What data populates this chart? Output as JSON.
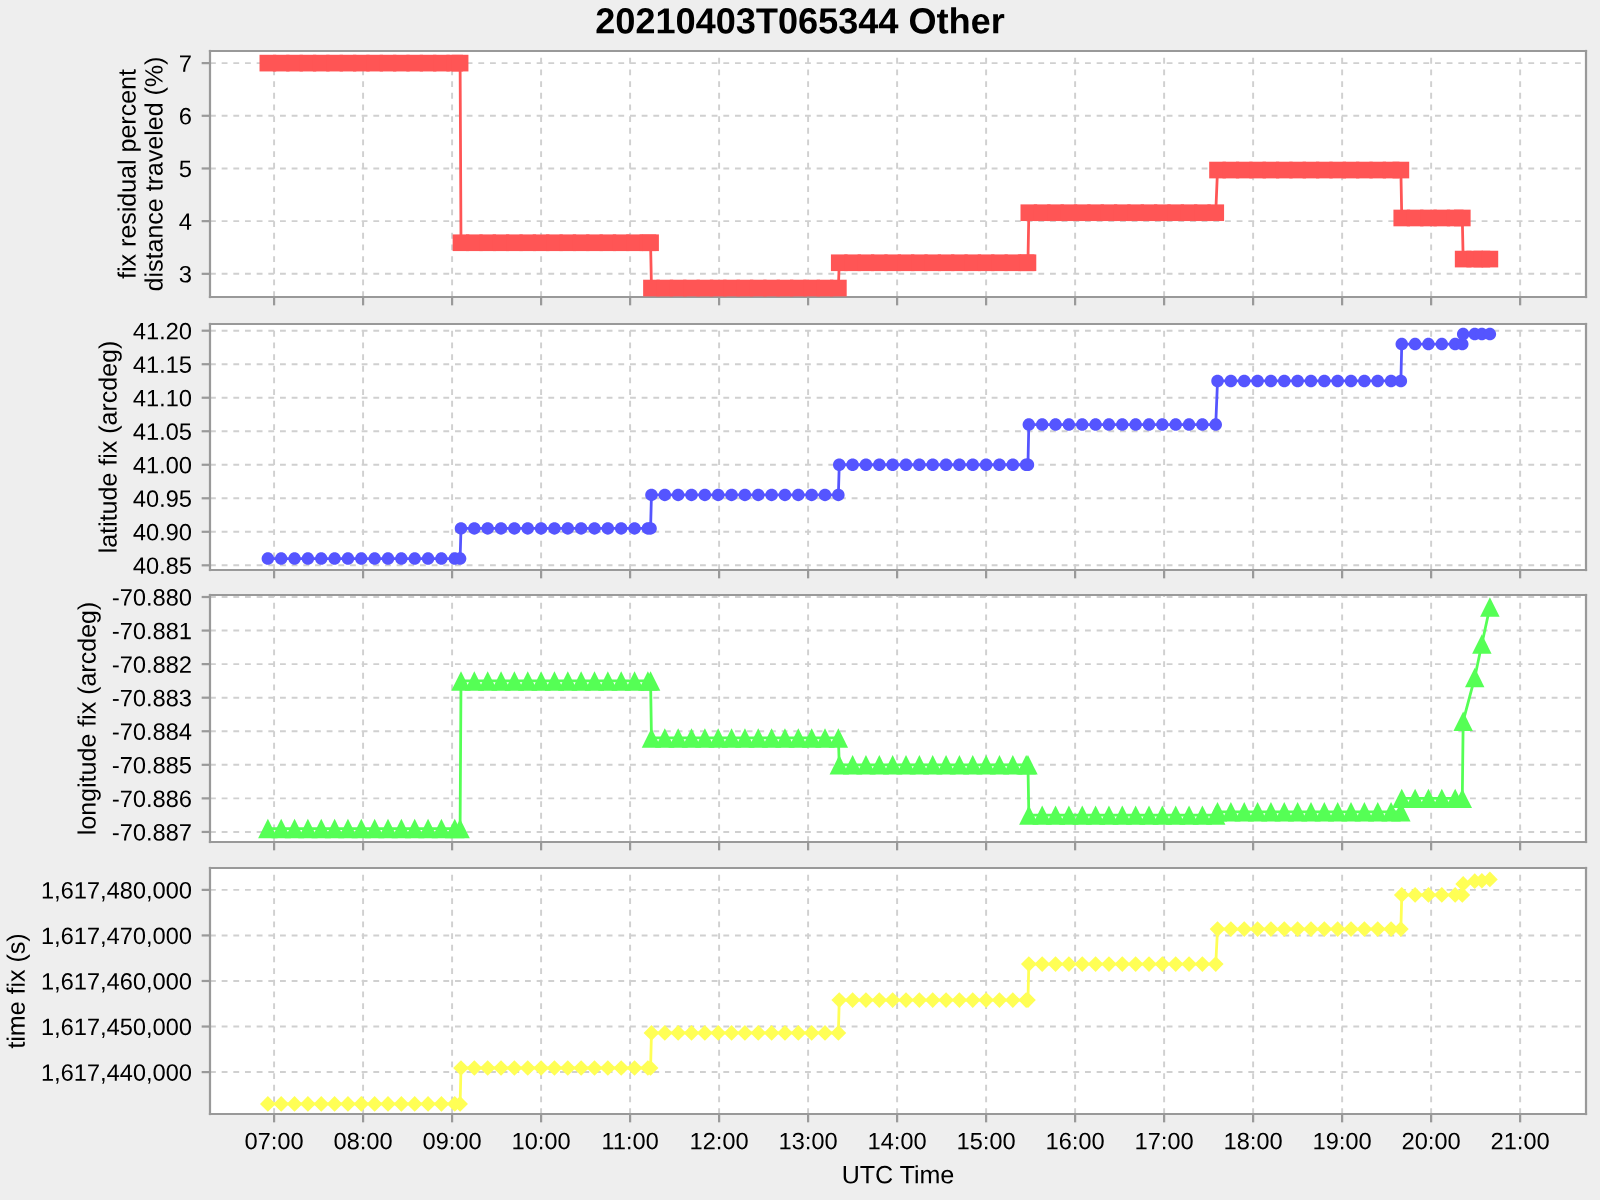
{
  "chart_data": [
    {
      "type": "line",
      "title": "20210403T065344 Other",
      "ylabel": "fix residual percent distance traveled (%)",
      "marker": "square",
      "grid": true,
      "tick_labels": "y",
      "x": [
        6.93,
        7.08,
        7.23,
        7.38,
        7.53,
        7.68,
        7.83,
        7.98,
        8.13,
        8.28,
        8.43,
        8.58,
        8.73,
        8.88,
        9.03,
        9.09,
        9.1,
        9.25,
        9.4,
        9.55,
        9.7,
        9.85,
        10.0,
        10.15,
        10.3,
        10.45,
        10.6,
        10.75,
        10.9,
        11.05,
        11.2,
        11.23,
        11.24,
        11.39,
        11.54,
        11.69,
        11.84,
        11.99,
        12.14,
        12.29,
        12.44,
        12.59,
        12.74,
        12.89,
        13.04,
        13.19,
        13.34,
        13.35,
        13.5,
        13.65,
        13.8,
        13.95,
        14.1,
        14.25,
        14.4,
        14.55,
        14.7,
        14.85,
        15.0,
        15.15,
        15.3,
        15.45,
        15.47,
        15.48,
        15.63,
        15.78,
        15.93,
        16.08,
        16.23,
        16.38,
        16.53,
        16.68,
        16.83,
        16.98,
        17.13,
        17.28,
        17.43,
        17.58,
        17.6,
        17.75,
        17.9,
        18.05,
        18.2,
        18.35,
        18.5,
        18.65,
        18.8,
        18.95,
        19.1,
        19.25,
        19.4,
        19.55,
        19.66,
        19.67,
        19.82,
        19.97,
        20.12,
        20.27,
        20.35,
        20.36,
        20.49,
        20.57,
        20.66
      ],
      "series": [
        {
          "color": "#ff5555",
          "values": [
            7.0,
            7.0,
            7.0,
            7.0,
            7.0,
            7.0,
            7.0,
            7.0,
            7.0,
            7.0,
            7.0,
            7.0,
            7.0,
            7.0,
            7.0,
            7.0,
            3.59,
            3.59,
            3.59,
            3.59,
            3.59,
            3.59,
            3.59,
            3.59,
            3.59,
            3.59,
            3.59,
            3.59,
            3.59,
            3.59,
            3.59,
            3.59,
            2.73,
            2.73,
            2.73,
            2.73,
            2.73,
            2.73,
            2.73,
            2.73,
            2.73,
            2.73,
            2.73,
            2.73,
            2.73,
            2.73,
            2.73,
            3.21,
            3.21,
            3.21,
            3.21,
            3.21,
            3.21,
            3.21,
            3.21,
            3.21,
            3.21,
            3.21,
            3.21,
            3.21,
            3.21,
            3.21,
            3.21,
            4.16,
            4.16,
            4.16,
            4.16,
            4.16,
            4.16,
            4.16,
            4.16,
            4.16,
            4.16,
            4.16,
            4.16,
            4.16,
            4.16,
            4.16,
            4.97,
            4.97,
            4.97,
            4.97,
            4.97,
            4.97,
            4.97,
            4.97,
            4.97,
            4.97,
            4.97,
            4.97,
            4.97,
            4.97,
            4.97,
            4.06,
            4.06,
            4.06,
            4.06,
            4.06,
            4.06,
            3.28,
            3.28,
            3.28,
            3.28
          ]
        }
      ],
      "xlim": [
        6.28,
        21.74
      ],
      "xticks": [
        {
          "value": 7,
          "label": null
        },
        {
          "value": 8,
          "label": null
        },
        {
          "value": 9,
          "label": null
        },
        {
          "value": 10,
          "label": null
        },
        {
          "value": 11,
          "label": null
        },
        {
          "value": 12,
          "label": null
        },
        {
          "value": 13,
          "label": null
        },
        {
          "value": 14,
          "label": null
        },
        {
          "value": 15,
          "label": null
        },
        {
          "value": 16,
          "label": null
        },
        {
          "value": 17,
          "label": null
        },
        {
          "value": 18,
          "label": null
        },
        {
          "value": 19,
          "label": null
        },
        {
          "value": 20,
          "label": null
        },
        {
          "value": 21,
          "label": null
        }
      ],
      "ylim": [
        2.56,
        7.23
      ],
      "yticks": [
        3,
        4,
        5,
        6,
        7
      ]
    },
    {
      "type": "line",
      "ylabel": "latitude fix (arcdeg)",
      "marker": "circle",
      "grid": true,
      "tick_labels": "y",
      "x": [
        6.93,
        7.08,
        7.23,
        7.38,
        7.53,
        7.68,
        7.83,
        7.98,
        8.13,
        8.28,
        8.43,
        8.58,
        8.73,
        8.88,
        9.03,
        9.09,
        9.1,
        9.25,
        9.4,
        9.55,
        9.7,
        9.85,
        10.0,
        10.15,
        10.3,
        10.45,
        10.6,
        10.75,
        10.9,
        11.05,
        11.2,
        11.23,
        11.24,
        11.39,
        11.54,
        11.69,
        11.84,
        11.99,
        12.14,
        12.29,
        12.44,
        12.59,
        12.74,
        12.89,
        13.04,
        13.19,
        13.34,
        13.35,
        13.5,
        13.65,
        13.8,
        13.95,
        14.1,
        14.25,
        14.4,
        14.55,
        14.7,
        14.85,
        15.0,
        15.15,
        15.3,
        15.45,
        15.47,
        15.48,
        15.63,
        15.78,
        15.93,
        16.08,
        16.23,
        16.38,
        16.53,
        16.68,
        16.83,
        16.98,
        17.13,
        17.28,
        17.43,
        17.58,
        17.6,
        17.75,
        17.9,
        18.05,
        18.2,
        18.35,
        18.5,
        18.65,
        18.8,
        18.95,
        19.1,
        19.25,
        19.4,
        19.55,
        19.66,
        19.67,
        19.82,
        19.97,
        20.12,
        20.27,
        20.35,
        20.36,
        20.49,
        20.57,
        20.66
      ],
      "series": [
        {
          "color": "#5555ff",
          "values": [
            40.86,
            40.86,
            40.86,
            40.86,
            40.86,
            40.86,
            40.86,
            40.86,
            40.86,
            40.86,
            40.86,
            40.86,
            40.86,
            40.86,
            40.86,
            40.86,
            40.905,
            40.905,
            40.905,
            40.905,
            40.905,
            40.905,
            40.905,
            40.905,
            40.905,
            40.905,
            40.905,
            40.905,
            40.905,
            40.905,
            40.905,
            40.905,
            40.955,
            40.955,
            40.955,
            40.955,
            40.955,
            40.955,
            40.955,
            40.955,
            40.955,
            40.955,
            40.955,
            40.955,
            40.955,
            40.955,
            40.955,
            41.0,
            41.0,
            41.0,
            41.0,
            41.0,
            41.0,
            41.0,
            41.0,
            41.0,
            41.0,
            41.0,
            41.0,
            41.0,
            41.0,
            41.0,
            41.0,
            41.06,
            41.06,
            41.06,
            41.06,
            41.06,
            41.06,
            41.06,
            41.06,
            41.06,
            41.06,
            41.06,
            41.06,
            41.06,
            41.06,
            41.06,
            41.125,
            41.125,
            41.125,
            41.125,
            41.125,
            41.125,
            41.125,
            41.125,
            41.125,
            41.125,
            41.125,
            41.125,
            41.125,
            41.125,
            41.125,
            41.18,
            41.18,
            41.18,
            41.18,
            41.18,
            41.18,
            41.195,
            41.195,
            41.195,
            41.195
          ]
        }
      ],
      "xlim": [
        6.28,
        21.74
      ],
      "xticks": [
        {
          "value": 7,
          "label": null
        },
        {
          "value": 8,
          "label": null
        },
        {
          "value": 9,
          "label": null
        },
        {
          "value": 10,
          "label": null
        },
        {
          "value": 11,
          "label": null
        },
        {
          "value": 12,
          "label": null
        },
        {
          "value": 13,
          "label": null
        },
        {
          "value": 14,
          "label": null
        },
        {
          "value": 15,
          "label": null
        },
        {
          "value": 16,
          "label": null
        },
        {
          "value": 17,
          "label": null
        },
        {
          "value": 18,
          "label": null
        },
        {
          "value": 19,
          "label": null
        },
        {
          "value": 20,
          "label": null
        },
        {
          "value": 21,
          "label": null
        }
      ],
      "ylim": [
        40.843,
        41.21
      ],
      "yticks": [
        {
          "value": 40.85,
          "label": "40.85"
        },
        {
          "value": 40.9,
          "label": "40.90"
        },
        {
          "value": 40.95,
          "label": "40.95"
        },
        {
          "value": 41.0,
          "label": "41.00"
        },
        {
          "value": 41.05,
          "label": "41.05"
        },
        {
          "value": 41.1,
          "label": "41.10"
        },
        {
          "value": 41.15,
          "label": "41.15"
        },
        {
          "value": 41.2,
          "label": "41.20"
        }
      ]
    },
    {
      "type": "line",
      "ylabel": "longitude fix (arcdeg)",
      "marker": "triangle",
      "grid": true,
      "tick_labels": "y",
      "x": [
        6.93,
        7.08,
        7.23,
        7.38,
        7.53,
        7.68,
        7.83,
        7.98,
        8.13,
        8.28,
        8.43,
        8.58,
        8.73,
        8.88,
        9.03,
        9.09,
        9.1,
        9.25,
        9.4,
        9.55,
        9.7,
        9.85,
        10.0,
        10.15,
        10.3,
        10.45,
        10.6,
        10.75,
        10.9,
        11.05,
        11.2,
        11.23,
        11.24,
        11.39,
        11.54,
        11.69,
        11.84,
        11.99,
        12.14,
        12.29,
        12.44,
        12.59,
        12.74,
        12.89,
        13.04,
        13.19,
        13.34,
        13.35,
        13.5,
        13.65,
        13.8,
        13.95,
        14.1,
        14.25,
        14.4,
        14.55,
        14.7,
        14.85,
        15.0,
        15.15,
        15.3,
        15.45,
        15.47,
        15.48,
        15.63,
        15.78,
        15.93,
        16.08,
        16.23,
        16.38,
        16.53,
        16.68,
        16.83,
        16.98,
        17.13,
        17.28,
        17.43,
        17.58,
        17.6,
        17.75,
        17.9,
        18.05,
        18.2,
        18.35,
        18.5,
        18.65,
        18.8,
        18.95,
        19.1,
        19.25,
        19.4,
        19.55,
        19.66,
        19.67,
        19.82,
        19.97,
        20.12,
        20.27,
        20.35,
        20.36,
        20.49,
        20.57,
        20.66
      ],
      "series": [
        {
          "color": "#55ff55",
          "values": [
            -70.8869,
            -70.8869,
            -70.8869,
            -70.8869,
            -70.8869,
            -70.8869,
            -70.8869,
            -70.8869,
            -70.8869,
            -70.8869,
            -70.8869,
            -70.8869,
            -70.8869,
            -70.8869,
            -70.8869,
            -70.8869,
            -70.8825,
            -70.8825,
            -70.8825,
            -70.8825,
            -70.8825,
            -70.8825,
            -70.8825,
            -70.8825,
            -70.8825,
            -70.8825,
            -70.8825,
            -70.8825,
            -70.8825,
            -70.8825,
            -70.8825,
            -70.8825,
            -70.8842,
            -70.8842,
            -70.8842,
            -70.8842,
            -70.8842,
            -70.8842,
            -70.8842,
            -70.8842,
            -70.8842,
            -70.8842,
            -70.8842,
            -70.8842,
            -70.8842,
            -70.8842,
            -70.8842,
            -70.885,
            -70.885,
            -70.885,
            -70.885,
            -70.885,
            -70.885,
            -70.885,
            -70.885,
            -70.885,
            -70.885,
            -70.885,
            -70.885,
            -70.885,
            -70.885,
            -70.885,
            -70.885,
            -70.8865,
            -70.8865,
            -70.8865,
            -70.8865,
            -70.8865,
            -70.8865,
            -70.8865,
            -70.8865,
            -70.8865,
            -70.8865,
            -70.8865,
            -70.8865,
            -70.8865,
            -70.8865,
            -70.8865,
            -70.8864,
            -70.8864,
            -70.8864,
            -70.8864,
            -70.8864,
            -70.8864,
            -70.8864,
            -70.8864,
            -70.8864,
            -70.8864,
            -70.8864,
            -70.8864,
            -70.8864,
            -70.8864,
            -70.8864,
            -70.886,
            -70.886,
            -70.886,
            -70.886,
            -70.886,
            -70.886,
            -70.8837,
            -70.8824,
            -70.8814,
            -70.8803
          ]
        }
      ],
      "xlim": [
        6.28,
        21.74
      ],
      "xticks": [
        {
          "value": 7,
          "label": null
        },
        {
          "value": 8,
          "label": null
        },
        {
          "value": 9,
          "label": null
        },
        {
          "value": 10,
          "label": null
        },
        {
          "value": 11,
          "label": null
        },
        {
          "value": 12,
          "label": null
        },
        {
          "value": 13,
          "label": null
        },
        {
          "value": 14,
          "label": null
        },
        {
          "value": 15,
          "label": null
        },
        {
          "value": 16,
          "label": null
        },
        {
          "value": 17,
          "label": null
        },
        {
          "value": 18,
          "label": null
        },
        {
          "value": 19,
          "label": null
        },
        {
          "value": 20,
          "label": null
        },
        {
          "value": 21,
          "label": null
        }
      ],
      "ylim": [
        -70.8873,
        -70.87994
      ],
      "yticks": [
        {
          "value": -70.887,
          "label": "-70.887"
        },
        {
          "value": -70.886,
          "label": "-70.886"
        },
        {
          "value": -70.885,
          "label": "-70.885"
        },
        {
          "value": -70.884,
          "label": "-70.884"
        },
        {
          "value": -70.883,
          "label": "-70.883"
        },
        {
          "value": -70.882,
          "label": "-70.882"
        },
        {
          "value": -70.881,
          "label": "-70.881"
        },
        {
          "value": -70.88,
          "label": "-70.880"
        }
      ]
    },
    {
      "type": "line",
      "ylabel": "time fix (s)",
      "xlabel": "UTC Time",
      "marker": "diamond",
      "grid": true,
      "x": [
        6.93,
        7.08,
        7.23,
        7.38,
        7.53,
        7.68,
        7.83,
        7.98,
        8.13,
        8.28,
        8.43,
        8.58,
        8.73,
        8.88,
        9.03,
        9.09,
        9.1,
        9.25,
        9.4,
        9.55,
        9.7,
        9.85,
        10.0,
        10.15,
        10.3,
        10.45,
        10.6,
        10.75,
        10.9,
        11.05,
        11.2,
        11.23,
        11.24,
        11.39,
        11.54,
        11.69,
        11.84,
        11.99,
        12.14,
        12.29,
        12.44,
        12.59,
        12.74,
        12.89,
        13.04,
        13.19,
        13.34,
        13.35,
        13.5,
        13.65,
        13.8,
        13.95,
        14.1,
        14.25,
        14.4,
        14.55,
        14.7,
        14.85,
        15.0,
        15.15,
        15.3,
        15.45,
        15.47,
        15.48,
        15.63,
        15.78,
        15.93,
        16.08,
        16.23,
        16.38,
        16.53,
        16.68,
        16.83,
        16.98,
        17.13,
        17.28,
        17.43,
        17.58,
        17.6,
        17.75,
        17.9,
        18.05,
        18.2,
        18.35,
        18.5,
        18.65,
        18.8,
        18.95,
        19.1,
        19.25,
        19.4,
        19.55,
        19.66,
        19.67,
        19.82,
        19.97,
        20.12,
        20.27,
        20.35,
        20.36,
        20.49,
        20.57,
        20.66
      ],
      "series": [
        {
          "color": "#ffff55",
          "values": [
            1617433000,
            1617433000,
            1617433000,
            1617433000,
            1617433000,
            1617433000,
            1617433000,
            1617433000,
            1617433000,
            1617433000,
            1617433000,
            1617433000,
            1617433000,
            1617433000,
            1617433000,
            1617433000,
            1617440900,
            1617440900,
            1617440900,
            1617440900,
            1617440900,
            1617440900,
            1617440900,
            1617440900,
            1617440900,
            1617440900,
            1617440900,
            1617440900,
            1617440900,
            1617440900,
            1617440900,
            1617440900,
            1617448600,
            1617448600,
            1617448600,
            1617448600,
            1617448600,
            1617448600,
            1617448600,
            1617448600,
            1617448600,
            1617448600,
            1617448600,
            1617448600,
            1617448600,
            1617448600,
            1617448600,
            1617455800,
            1617455800,
            1617455800,
            1617455800,
            1617455800,
            1617455800,
            1617455800,
            1617455800,
            1617455800,
            1617455800,
            1617455800,
            1617455800,
            1617455800,
            1617455800,
            1617455800,
            1617455800,
            1617463700,
            1617463700,
            1617463700,
            1617463700,
            1617463700,
            1617463700,
            1617463700,
            1617463700,
            1617463700,
            1617463700,
            1617463700,
            1617463700,
            1617463700,
            1617463700,
            1617463700,
            1617471400,
            1617471400,
            1617471400,
            1617471400,
            1617471400,
            1617471400,
            1617471400,
            1617471400,
            1617471400,
            1617471400,
            1617471400,
            1617471400,
            1617471400,
            1617471400,
            1617471400,
            1617478900,
            1617478900,
            1617478900,
            1617478900,
            1617478900,
            1617478900,
            1617481300,
            1617481900,
            1617482000,
            1617482300
          ]
        }
      ],
      "xlim": [
        6.28,
        21.74
      ],
      "xticks": [
        {
          "value": 7,
          "label": "07:00"
        },
        {
          "value": 8,
          "label": "08:00"
        },
        {
          "value": 9,
          "label": "09:00"
        },
        {
          "value": 10,
          "label": "10:00"
        },
        {
          "value": 11,
          "label": "11:00"
        },
        {
          "value": 12,
          "label": "12:00"
        },
        {
          "value": 13,
          "label": "13:00"
        },
        {
          "value": 14,
          "label": "14:00"
        },
        {
          "value": 15,
          "label": "15:00"
        },
        {
          "value": 16,
          "label": "16:00"
        },
        {
          "value": 17,
          "label": "17:00"
        },
        {
          "value": 18,
          "label": "18:00"
        },
        {
          "value": 19,
          "label": "19:00"
        },
        {
          "value": 20,
          "label": "20:00"
        },
        {
          "value": 21,
          "label": "21:00"
        }
      ],
      "ylim": [
        1617430800,
        1617484800
      ],
      "yticks": [
        {
          "value": 1617440000,
          "label": "1,617,440,000"
        },
        {
          "value": 1617450000,
          "label": "1,617,450,000"
        },
        {
          "value": 1617460000,
          "label": "1,617,460,000"
        },
        {
          "value": 1617470000,
          "label": "1,617,470,000"
        },
        {
          "value": 1617480000,
          "label": "1,617,480,000"
        }
      ]
    }
  ]
}
